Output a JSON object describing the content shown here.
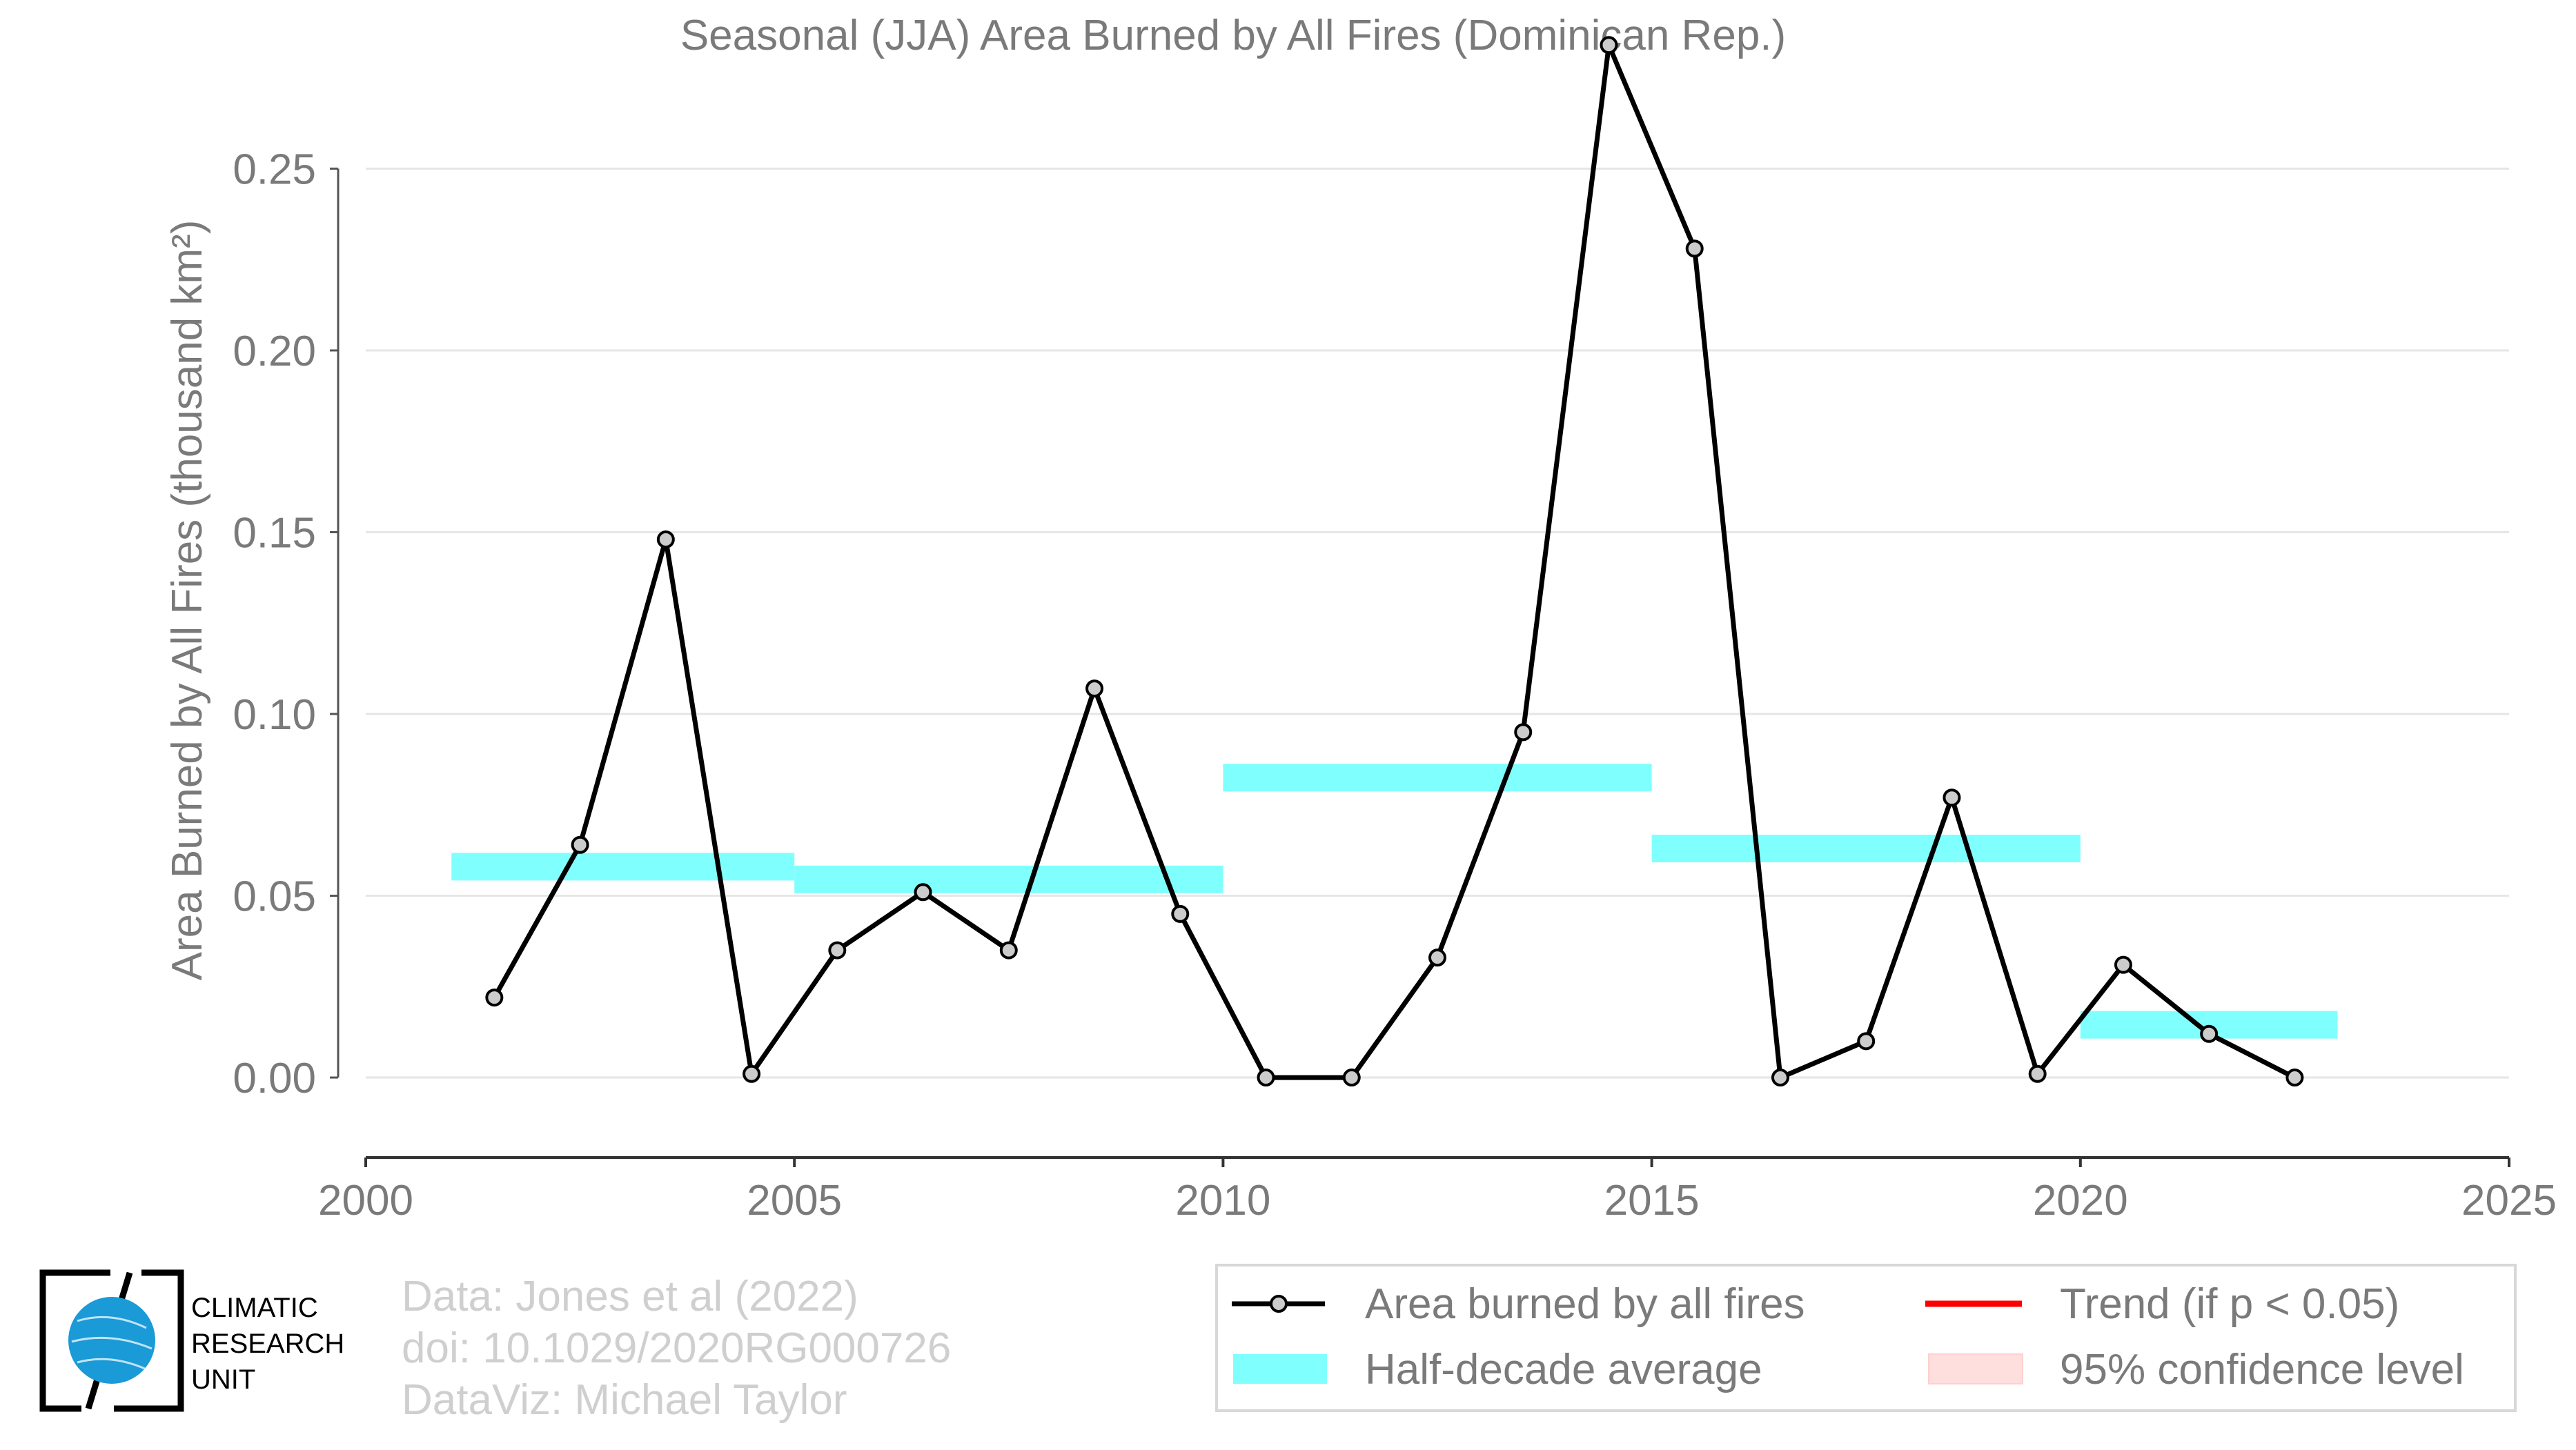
{
  "chart_data": {
    "type": "line",
    "title": "Seasonal (JJA) Area Burned by All Fires (Dominican Rep.)",
    "xlabel": "",
    "ylabel": "Area Burned by All Fires (thousand km²)",
    "xlim": [
      2000,
      2025
    ],
    "ylim": [
      -0.022,
      0.285
    ],
    "xticks": [
      2000,
      2005,
      2010,
      2015,
      2020,
      2025
    ],
    "xtick_labels": [
      "2000",
      "2005",
      "2010",
      "2015",
      "2020",
      "2025"
    ],
    "yticks": [
      0,
      0.05,
      0.1,
      0.15,
      0.2,
      0.25
    ],
    "ytick_labels": [
      "0.00",
      "0.05",
      "0.10",
      "0.15",
      "0.20",
      "0.25"
    ],
    "grid": "horizontal",
    "series": [
      {
        "name": "Area burned by all fires",
        "color": "#000000",
        "marker_color": "#cccccc",
        "x": [
          2001.5,
          2002.5,
          2003.5,
          2004.5,
          2005.5,
          2006.5,
          2007.5,
          2008.5,
          2009.5,
          2010.5,
          2011.5,
          2012.5,
          2013.5,
          2014.5,
          2015.5,
          2016.5,
          2017.5,
          2018.5,
          2019.5,
          2020.5,
          2021.5,
          2022.5
        ],
        "values": [
          0.022,
          0.064,
          0.148,
          0.001,
          0.035,
          0.051,
          0.035,
          0.107,
          0.045,
          0.0,
          0.0,
          0.033,
          0.095,
          0.284,
          0.228,
          0.0,
          0.01,
          0.077,
          0.001,
          0.031,
          0.012,
          0.0
        ]
      },
      {
        "name": "Half-decade average",
        "color": "#80ffff",
        "segments": [
          {
            "x_start": 2001,
            "x_end": 2005,
            "value": 0.058
          },
          {
            "x_start": 2005,
            "x_end": 2010,
            "value": 0.0545
          },
          {
            "x_start": 2010,
            "x_end": 2015,
            "value": 0.0825
          },
          {
            "x_start": 2015,
            "x_end": 2020,
            "value": 0.063
          },
          {
            "x_start": 2020,
            "x_end": 2023,
            "value": 0.0145
          }
        ]
      }
    ],
    "legend": {
      "placement": "bottom-right",
      "entries": [
        {
          "label": "Area burned by all fires",
          "color": "#000000",
          "kind": "line-marker"
        },
        {
          "label": "Trend (if p < 0.05)",
          "color": "#ff0000",
          "kind": "line"
        },
        {
          "label": "Half-decade average",
          "color": "#80ffff",
          "kind": "band"
        },
        {
          "label": "95% confidence level",
          "color": "#ffdede",
          "kind": "band"
        }
      ]
    }
  },
  "credits": {
    "line1": "Data: Jones et al (2022)",
    "line2": "doi: 10.1029/2020RG000726",
    "line3": "DataViz: Michael Taylor"
  },
  "logo": {
    "line1": "CLIMATIC",
    "line2": "RESEARCH",
    "line3": "UNIT"
  }
}
